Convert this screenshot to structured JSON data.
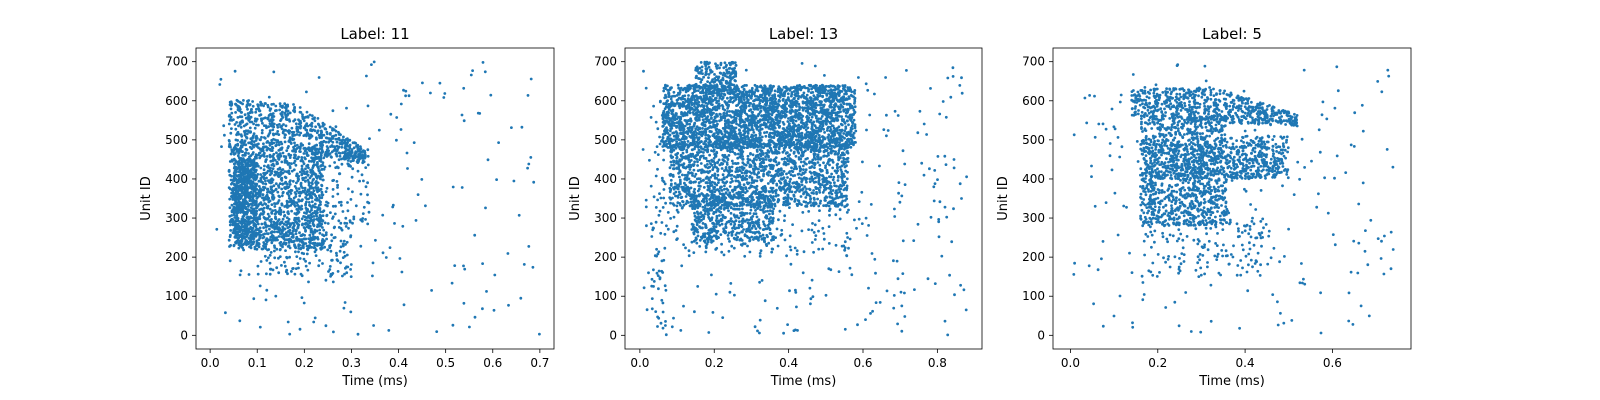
{
  "figure": {
    "background": "#ffffff",
    "marker_color": "#1f77b4"
  },
  "chart_data": [
    {
      "type": "scatter",
      "title": "Label: 11",
      "xlabel": "Time (ms)",
      "ylabel": "Unit ID",
      "xlim": [
        -0.03,
        0.73
      ],
      "ylim": [
        -35,
        735
      ],
      "xticks": [
        0.0,
        0.1,
        0.2,
        0.3,
        0.4,
        0.5,
        0.6,
        0.7
      ],
      "xtick_labels": [
        "0.0",
        "0.1",
        "0.2",
        "0.3",
        "0.4",
        "0.5",
        "0.6",
        "0.7"
      ],
      "yticks": [
        0,
        100,
        200,
        300,
        400,
        500,
        600,
        700
      ],
      "ytick_labels": [
        "0",
        "100",
        "200",
        "300",
        "400",
        "500",
        "600",
        "700"
      ],
      "grid": false,
      "series": [
        {
          "color": "#1f77b4"
        }
      ],
      "dense_regions": [
        {
          "shape": "band",
          "x": [
            0.04,
            0.33
          ],
          "y_top": [
            605,
            590,
            475
          ],
          "y_bottom": [
            480,
            470,
            440
          ],
          "count": 700
        },
        {
          "shape": "rect",
          "x": [
            0.04,
            0.24
          ],
          "y": [
            220,
            480
          ],
          "count": 1300
        },
        {
          "shape": "rect",
          "x": [
            0.05,
            0.1
          ],
          "y": [
            230,
            450
          ],
          "count": 500
        },
        {
          "shape": "rect",
          "x": [
            0.1,
            0.3
          ],
          "y": [
            150,
            300
          ],
          "count": 200
        },
        {
          "shape": "rect",
          "x": [
            0.2,
            0.34
          ],
          "y": [
            280,
            480
          ],
          "count": 120
        }
      ],
      "sparse_points": 170,
      "sparse_x": [
        0.0,
        0.7
      ],
      "sparse_y": [
        0,
        700
      ],
      "seed": 11
    },
    {
      "type": "scatter",
      "title": "Label: 13",
      "xlabel": "Time (ms)",
      "ylabel": "Unit ID",
      "xlim": [
        -0.04,
        0.92
      ],
      "ylim": [
        -35,
        735
      ],
      "xticks": [
        0.0,
        0.2,
        0.4,
        0.6,
        0.8
      ],
      "xtick_labels": [
        "0.0",
        "0.2",
        "0.4",
        "0.6",
        "0.8"
      ],
      "yticks": [
        0,
        100,
        200,
        300,
        400,
        500,
        600,
        700
      ],
      "ytick_labels": [
        "0",
        "100",
        "200",
        "300",
        "400",
        "500",
        "600",
        "700"
      ],
      "grid": false,
      "series": [
        {
          "color": "#1f77b4"
        }
      ],
      "dense_regions": [
        {
          "shape": "rect",
          "x": [
            0.06,
            0.58
          ],
          "y": [
            480,
            640
          ],
          "count": 2600
        },
        {
          "shape": "rect",
          "x": [
            0.08,
            0.56
          ],
          "y": [
            330,
            490
          ],
          "count": 1500
        },
        {
          "shape": "rect",
          "x": [
            0.14,
            0.36
          ],
          "y": [
            240,
            360
          ],
          "count": 500
        },
        {
          "shape": "rect",
          "x": [
            0.15,
            0.26
          ],
          "y": [
            620,
            700
          ],
          "count": 180
        },
        {
          "shape": "rect",
          "x": [
            0.03,
            0.07
          ],
          "y": [
            0,
            620
          ],
          "count": 70
        },
        {
          "shape": "rect",
          "x": [
            0.07,
            0.58
          ],
          "y": [
            200,
            340
          ],
          "count": 150
        }
      ],
      "sparse_points": 260,
      "sparse_x": [
        0.0,
        0.88
      ],
      "sparse_y": [
        0,
        700
      ],
      "seed": 13
    },
    {
      "type": "scatter",
      "title": "Label: 5",
      "xlabel": "Time (ms)",
      "ylabel": "Unit ID",
      "xlim": [
        -0.04,
        0.78
      ],
      "ylim": [
        -35,
        735
      ],
      "xticks": [
        0.0,
        0.2,
        0.4,
        0.6
      ],
      "xtick_labels": [
        "0.0",
        "0.2",
        "0.4",
        "0.6"
      ],
      "yticks": [
        0,
        100,
        200,
        300,
        400,
        500,
        600,
        700
      ],
      "ytick_labels": [
        "0",
        "100",
        "200",
        "300",
        "400",
        "500",
        "600",
        "700"
      ],
      "grid": false,
      "series": [
        {
          "color": "#1f77b4"
        }
      ],
      "dense_regions": [
        {
          "shape": "band",
          "x": [
            0.14,
            0.52
          ],
          "y_top": [
            630,
            635,
            565
          ],
          "y_bottom": [
            560,
            545,
            535
          ],
          "count": 650
        },
        {
          "shape": "rect",
          "x": [
            0.16,
            0.36
          ],
          "y": [
            280,
            560
          ],
          "count": 1100
        },
        {
          "shape": "rect",
          "x": [
            0.18,
            0.48
          ],
          "y": [
            400,
            490
          ],
          "count": 350
        },
        {
          "shape": "rect",
          "x": [
            0.36,
            0.5
          ],
          "y": [
            400,
            510
          ],
          "count": 200
        },
        {
          "shape": "rect",
          "x": [
            0.16,
            0.46
          ],
          "y": [
            150,
            300
          ],
          "count": 150
        }
      ],
      "sparse_points": 200,
      "sparse_x": [
        0.0,
        0.74
      ],
      "sparse_y": [
        0,
        700
      ],
      "seed": 5
    }
  ]
}
